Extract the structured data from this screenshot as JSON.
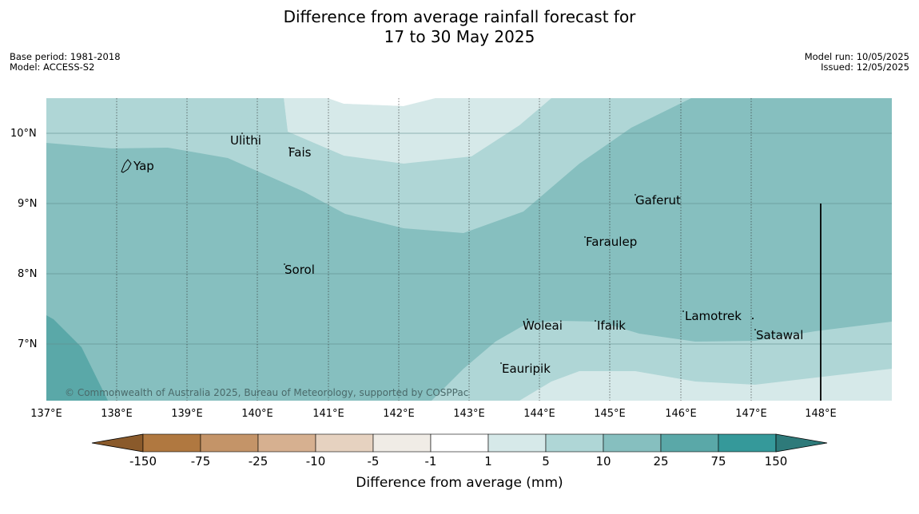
{
  "title": {
    "line1": "Difference from average rainfall forecast for",
    "line2": "17 to 30 May 2025"
  },
  "meta_left": {
    "base_period": "Base period: 1981-2018",
    "model": "Model: ACCESS-S2"
  },
  "meta_right": {
    "model_run": "Model run: 10/05/2025",
    "issued": "Issued: 12/05/2025"
  },
  "map": {
    "lat_ticks": [
      "10°N",
      "9°N",
      "8°N",
      "7°N"
    ],
    "lon_ticks": [
      "137°E",
      "138°E",
      "139°E",
      "140°E",
      "141°E",
      "142°E",
      "143°E",
      "144°E",
      "145°E",
      "146°E",
      "147°E",
      "148°E"
    ],
    "places": {
      "yap": "Yap",
      "ulithi": "Ulithi",
      "fais": "Fais",
      "gaferut": "Gaferut",
      "faraulep": "Faraulep",
      "sorol": "Sorol",
      "lamotrek": "Lamotrek",
      "satawal": "Satawal",
      "woleai": "Woleai",
      "ifalik": "Ifalik",
      "eauripik": "Eauripik"
    },
    "copyright": "© Commonwealth of Australia 2025, Bureau of Meteorology, supported by COSPPac"
  },
  "colorbar": {
    "ticks": [
      "-150",
      "-75",
      "-25",
      "-10",
      "-5",
      "-1",
      "1",
      "5",
      "10",
      "25",
      "75",
      "150"
    ],
    "label": "Difference from average (mm)",
    "colors": [
      "#8a5a2b",
      "#b07840",
      "#c49468",
      "#d6b090",
      "#e6d2c0",
      "#f0ece6",
      "#ffffff",
      "#d6e9e9",
      "#afd6d6",
      "#86bfbf",
      "#5aa8a8",
      "#35999a",
      "#2e7a7a"
    ]
  }
}
